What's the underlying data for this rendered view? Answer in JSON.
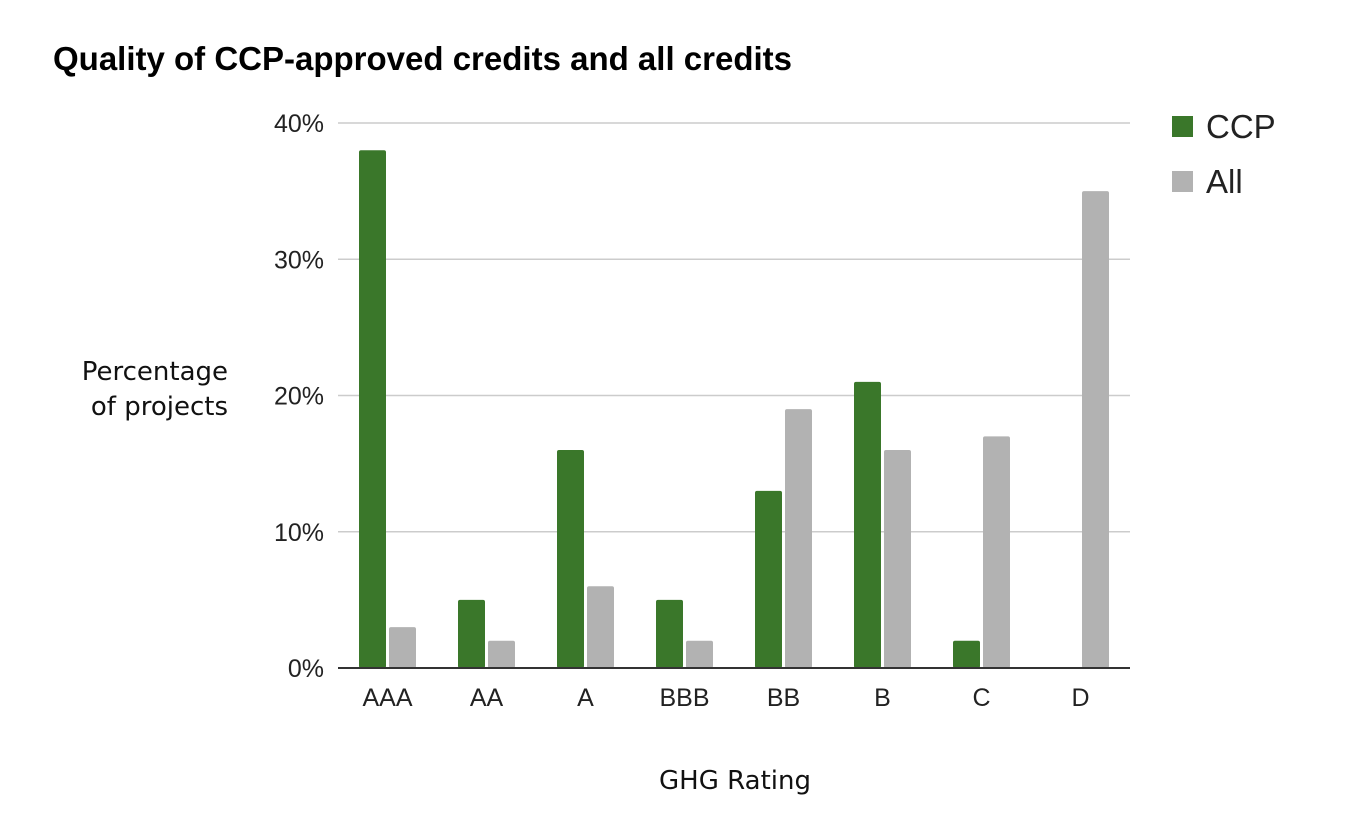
{
  "chart_data": {
    "type": "bar",
    "title": "Quality of CCP-approved credits and all credits",
    "xlabel": "GHG Rating",
    "ylabel_lines": [
      "Percentage",
      "of projects"
    ],
    "categories": [
      "AAA",
      "AA",
      "A",
      "BBB",
      "BB",
      "B",
      "C",
      "D"
    ],
    "series": [
      {
        "name": "CCP",
        "color": "#3a772a",
        "values": [
          38,
          5,
          16,
          5,
          13,
          21,
          2,
          0
        ]
      },
      {
        "name": "All",
        "color": "#b2b2b2",
        "values": [
          3,
          2,
          6,
          2,
          19,
          16,
          17,
          35
        ]
      }
    ],
    "ylim": [
      0,
      40
    ],
    "yticks": [
      0,
      10,
      20,
      30,
      40
    ],
    "ytick_labels": [
      "0%",
      "10%",
      "20%",
      "30%",
      "40%"
    ],
    "grid": true,
    "legend_position": "top-right"
  }
}
